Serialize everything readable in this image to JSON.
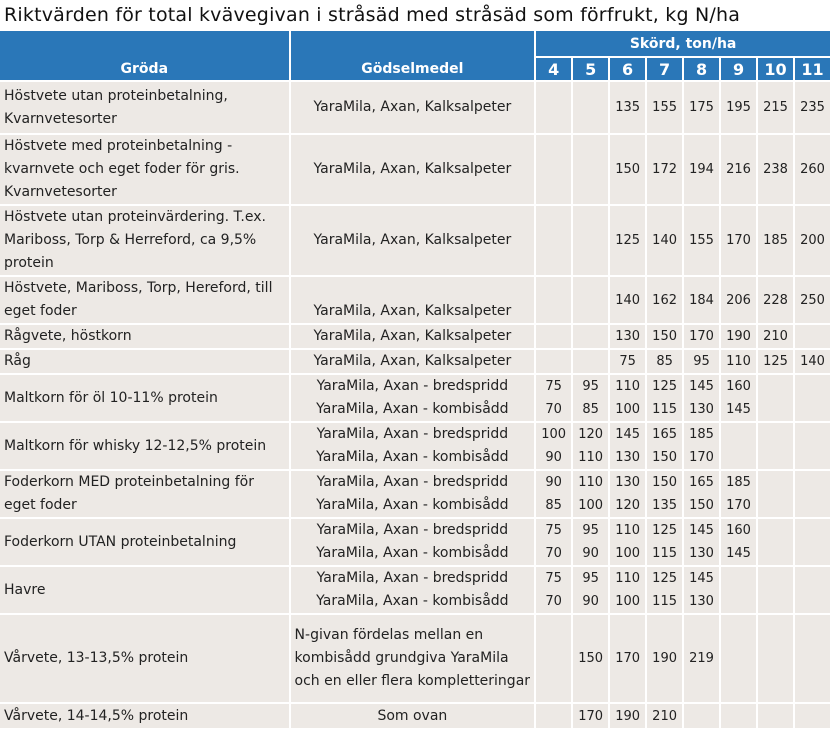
{
  "title": "Riktvärden för total kvävegivan i stråsäd med stråsäd som förfrukt, kg N/ha",
  "header": {
    "groda": "Gröda",
    "godselmedel": "Gödselmedel",
    "skord": "Skörd, ton/ha",
    "yields": [
      "4",
      "5",
      "6",
      "7",
      "8",
      "9",
      "10",
      "11"
    ]
  },
  "colors": {
    "header_bg": "#2a77b8",
    "cell_bg": "#ede9e5"
  },
  "rows": [
    {
      "groda": "Höstvete utan proteinbetalning, Kvarnvetesorter",
      "godsel": [
        "YaraMila, Axan, Kalksalpeter"
      ],
      "values": [
        [
          "",
          "",
          "135",
          "155",
          "175",
          "195",
          "215",
          "235"
        ]
      ]
    },
    {
      "groda": "Höstvete med proteinbetalning - kvarnvete och eget foder för gris. Kvarnvetesorter",
      "godsel": [
        "YaraMila, Axan, Kalksalpeter"
      ],
      "values": [
        [
          "",
          "",
          "150",
          "172",
          "194",
          "216",
          "238",
          "260"
        ]
      ]
    },
    {
      "groda": "Höstvete utan proteinvärdering. T.ex. Mariboss, Torp & Herreford, ca 9,5% protein",
      "godsel": [
        "YaraMila, Axan, Kalksalpeter"
      ],
      "values": [
        [
          "",
          "",
          "125",
          "140",
          "155",
          "170",
          "185",
          "200"
        ]
      ]
    },
    {
      "groda": "Höstvete, Mariboss, Torp, Hereford, till eget foder",
      "godsel": [
        "YaraMila, Axan, Kalksalpeter"
      ],
      "values": [
        [
          "",
          "",
          "140",
          "162",
          "184",
          "206",
          "228",
          "250"
        ]
      ]
    },
    {
      "groda": "Rågvete, höstkorn",
      "godsel": [
        "YaraMila, Axan, Kalksalpeter"
      ],
      "values": [
        [
          "",
          "",
          "130",
          "150",
          "170",
          "190",
          "210",
          ""
        ]
      ]
    },
    {
      "groda": "Råg",
      "godsel": [
        "YaraMila, Axan, Kalksalpeter"
      ],
      "values": [
        [
          "",
          "",
          "75",
          "85",
          "95",
          "110",
          "125",
          "140"
        ]
      ]
    },
    {
      "groda": "Maltkorn för öl 10-11% protein",
      "godsel": [
        "YaraMila, Axan - bredspridd",
        "YaraMila, Axan - kombisådd"
      ],
      "values": [
        [
          "75",
          "95",
          "110",
          "125",
          "145",
          "160",
          "",
          ""
        ],
        [
          "70",
          "85",
          "100",
          "115",
          "130",
          "145",
          "",
          ""
        ]
      ]
    },
    {
      "groda": "Maltkorn för whisky 12-12,5% protein",
      "godsel": [
        "YaraMila, Axan - bredspridd",
        "YaraMila, Axan - kombisådd"
      ],
      "values": [
        [
          "100",
          "120",
          "145",
          "165",
          "185",
          "",
          "",
          ""
        ],
        [
          "90",
          "110",
          "130",
          "150",
          "170",
          "",
          "",
          ""
        ]
      ]
    },
    {
      "groda": "Foderkorn MED proteinbetalning för eget foder",
      "godsel": [
        "YaraMila, Axan - bredspridd",
        "YaraMila, Axan - kombisådd"
      ],
      "values": [
        [
          "90",
          "110",
          "130",
          "150",
          "165",
          "185",
          "",
          ""
        ],
        [
          "85",
          "100",
          "120",
          "135",
          "150",
          "170",
          "",
          ""
        ]
      ]
    },
    {
      "groda": "Foderkorn UTAN proteinbetalning",
      "godsel": [
        "YaraMila, Axan - bredspridd",
        "YaraMila, Axan - kombisådd"
      ],
      "values": [
        [
          "75",
          "95",
          "110",
          "125",
          "145",
          "160",
          "",
          ""
        ],
        [
          "70",
          "90",
          "100",
          "115",
          "130",
          "145",
          "",
          ""
        ]
      ]
    },
    {
      "groda": "Havre",
      "godsel": [
        "YaraMila, Axan - bredspridd",
        "YaraMila, Axan - kombisådd"
      ],
      "values": [
        [
          "75",
          "95",
          "110",
          "125",
          "145",
          "",
          "",
          ""
        ],
        [
          "70",
          "90",
          "100",
          "115",
          "130",
          "",
          "",
          ""
        ]
      ]
    },
    {
      "groda": "Vårvete, 13-13,5% protein",
      "godsel": [
        "N-givan fördelas mellan en kombisådd grundgiva YaraMila och en eller flera kompletteringar"
      ],
      "values": [
        [
          "",
          "150",
          "170",
          "190",
          "219",
          "",
          "",
          ""
        ]
      ]
    },
    {
      "groda": "Vårvete, 14-14,5% protein",
      "godsel": [
        "Som ovan"
      ],
      "values": [
        [
          "",
          "170",
          "190",
          "210",
          "",
          "",
          "",
          ""
        ]
      ]
    }
  ]
}
